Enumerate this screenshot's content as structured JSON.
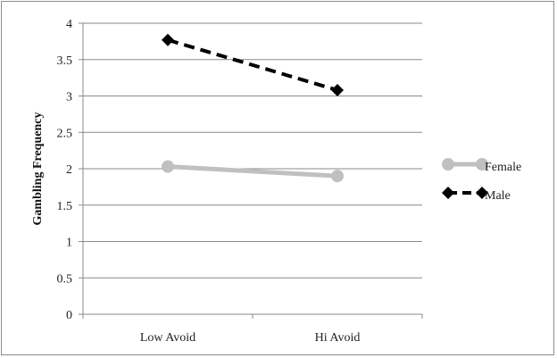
{
  "chart_data": {
    "type": "line",
    "title": "",
    "xlabel": "",
    "ylabel": "Gambling Frequency",
    "categories": [
      "Low Avoid",
      "Hi Avoid"
    ],
    "ylim": [
      0,
      4
    ],
    "yticks": [
      0,
      0.5,
      1,
      1.5,
      2,
      2.5,
      3,
      3.5,
      4
    ],
    "ytick_labels": [
      "0",
      "0.5",
      "1",
      "1.5",
      "2",
      "2.5",
      "3",
      "3.5",
      "4"
    ],
    "grid": true,
    "legend_position": "right",
    "series": [
      {
        "name": "Female",
        "values": [
          2.03,
          1.9
        ],
        "color": "#c0c0c0",
        "marker": "circle",
        "line": "solid"
      },
      {
        "name": "Male",
        "values": [
          3.77,
          3.08
        ],
        "color": "#000000",
        "marker": "diamond",
        "line": "dashed"
      }
    ]
  }
}
